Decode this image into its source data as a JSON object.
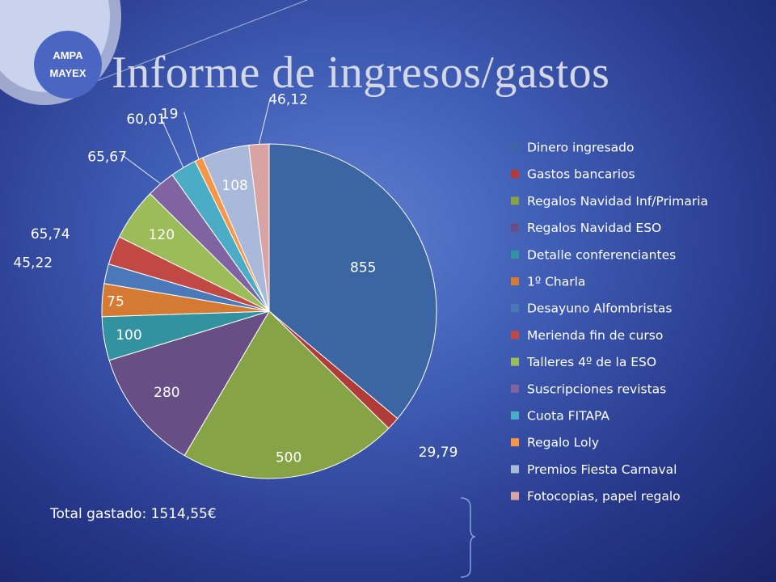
{
  "logo": {
    "line1": "AMPA",
    "line2": "MAYEX"
  },
  "title": "Informe de ingresos/gastos",
  "total": "Total gastado: 1514,55€",
  "chart_data": {
    "type": "pie",
    "title": "Informe de ingresos/gastos",
    "legend_position": "right",
    "slices": [
      {
        "name": "Dinero ingresado",
        "value": 855,
        "label": "855",
        "color": "#3b66a3"
      },
      {
        "name": "Gastos bancarios",
        "value": 29.79,
        "label": "29,79",
        "color": "#b03b39"
      },
      {
        "name": "Regalos Navidad Inf/Primaria",
        "value": 500,
        "label": "500",
        "color": "#86a345"
      },
      {
        "name": "Regalos Navidad ESO",
        "value": 280,
        "label": "280",
        "color": "#674f86"
      },
      {
        "name": "Detalle conferenciantes",
        "value": 100,
        "label": "100",
        "color": "#33929f"
      },
      {
        "name": "1º Charla",
        "value": 75,
        "label": "75",
        "color": "#d57a32"
      },
      {
        "name": "Desayuno Alfombristas",
        "value": 45.22,
        "label": "45,22",
        "color": "#4a78b8"
      },
      {
        "name": "Merienda fin de curso",
        "value": 65.74,
        "label": "65,74",
        "color": "#c24844"
      },
      {
        "name": "Talleres 4º de la ESO",
        "value": 120,
        "label": "120",
        "color": "#9cbc59"
      },
      {
        "name": "Suscripciones revistas",
        "value": 65.67,
        "label": "65,67",
        "color": "#8064a2"
      },
      {
        "name": "Cuota FITAPA",
        "value": 60.01,
        "label": "60,01",
        "color": "#4bacc6"
      },
      {
        "name": "Regalo Loly",
        "value": 19,
        "label": "19",
        "color": "#f79646"
      },
      {
        "name": "Premios Fiesta Carnaval",
        "value": 108,
        "label": "108",
        "color": "#aab8da"
      },
      {
        "name": "Fotocopias, papel regalo",
        "value": 46.12,
        "label": "46,12",
        "color": "#d9a3a3"
      }
    ]
  }
}
